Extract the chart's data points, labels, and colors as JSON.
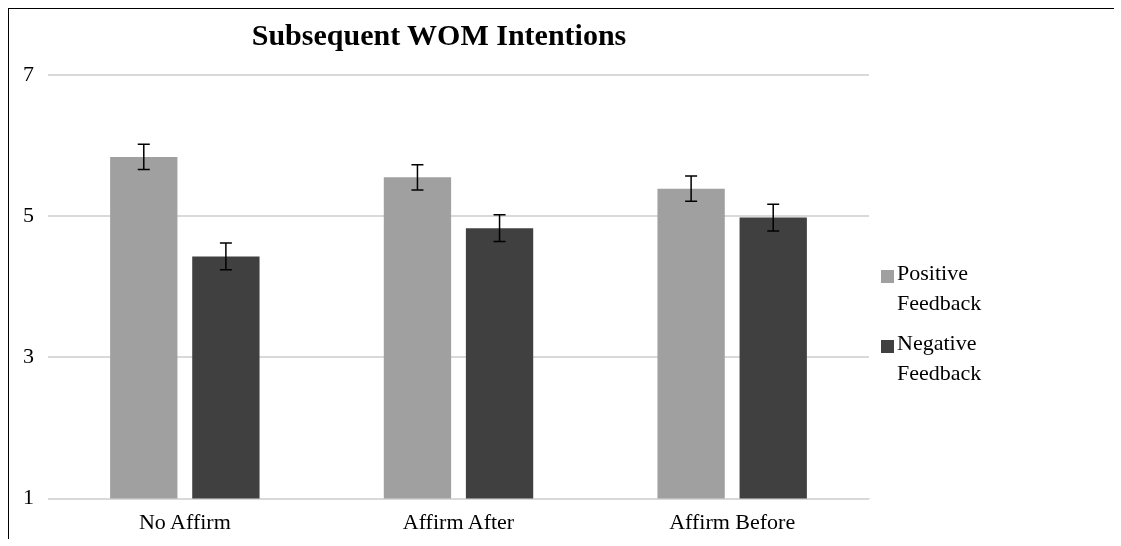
{
  "chart_data": {
    "type": "bar",
    "title": "Subsequent WOM Intentions",
    "categories": [
      "No Affirm",
      "Affirm After",
      "Affirm Before"
    ],
    "series": [
      {
        "name": "Positive Feedback",
        "color": "#a0a0a0",
        "values": [
          5.84,
          5.55,
          5.39
        ],
        "errors": [
          0.18,
          0.18,
          0.18
        ]
      },
      {
        "name": "Negative Feedback",
        "color": "#404040",
        "values": [
          4.43,
          4.83,
          4.98
        ],
        "errors": [
          0.19,
          0.19,
          0.19
        ]
      }
    ],
    "ylim": [
      1,
      7
    ],
    "yticks": [
      1,
      3,
      5,
      7
    ],
    "grid": "y",
    "legend": "right"
  }
}
